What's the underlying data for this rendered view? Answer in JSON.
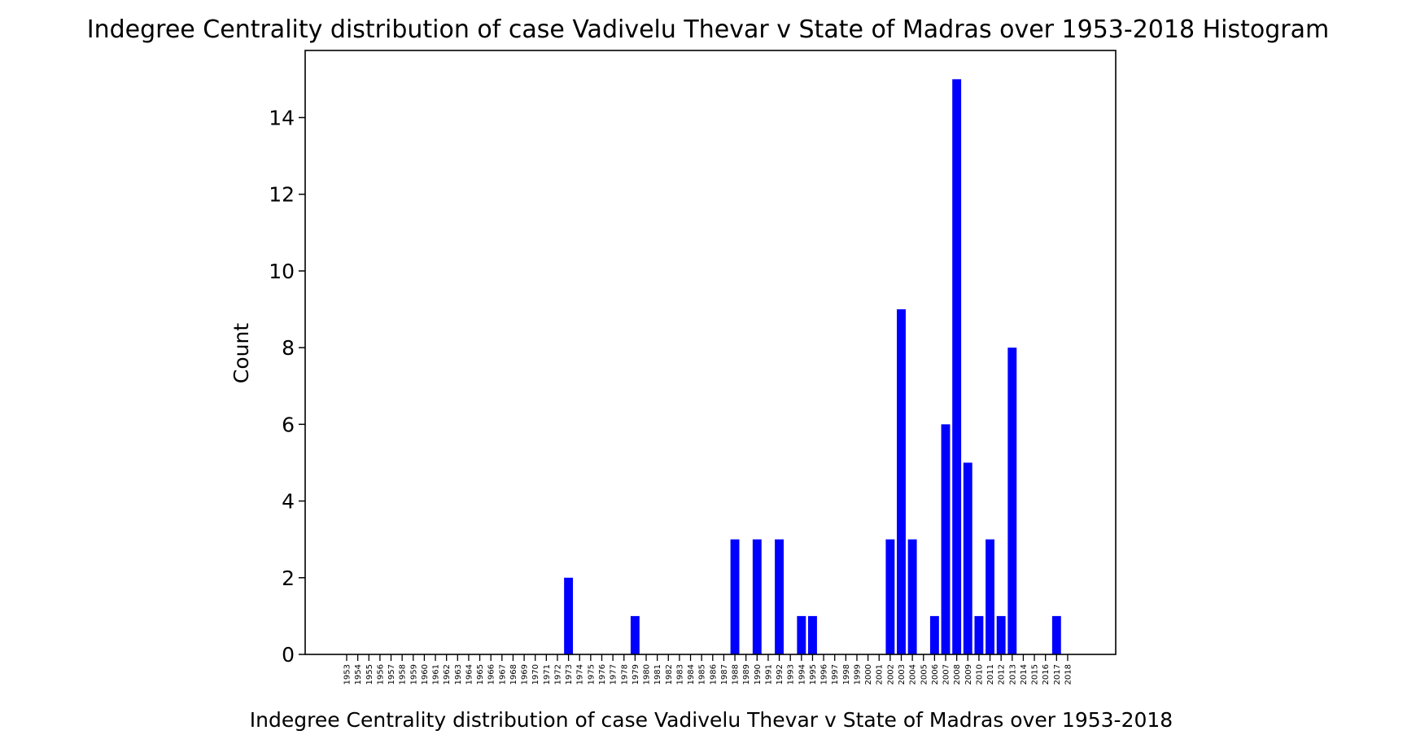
{
  "chart_data": {
    "type": "bar",
    "title": "Indegree Centrality distribution of case Vadivelu Thevar v State of Madras over 1953-2018 Histogram",
    "xlabel": "Indegree Centrality distribution of case Vadivelu Thevar v State of Madras over 1953-2018",
    "ylabel": "Count",
    "ylim": [
      0,
      15.75
    ],
    "yticks": [
      0,
      2,
      4,
      6,
      8,
      10,
      12,
      14
    ],
    "grid": false,
    "legend": "none",
    "bar_color": "#0000ff",
    "categories": [
      "1953",
      "1954",
      "1955",
      "1956",
      "1957",
      "1958",
      "1959",
      "1960",
      "1961",
      "1962",
      "1963",
      "1964",
      "1965",
      "1966",
      "1967",
      "1968",
      "1969",
      "1970",
      "1971",
      "1972",
      "1973",
      "1974",
      "1975",
      "1976",
      "1977",
      "1978",
      "1979",
      "1980",
      "1981",
      "1982",
      "1983",
      "1984",
      "1985",
      "1986",
      "1987",
      "1988",
      "1989",
      "1990",
      "1991",
      "1992",
      "1993",
      "1994",
      "1995",
      "1996",
      "1997",
      "1998",
      "1999",
      "2000",
      "2001",
      "2002",
      "2003",
      "2004",
      "2005",
      "2006",
      "2007",
      "2008",
      "2009",
      "2010",
      "2011",
      "2012",
      "2013",
      "2014",
      "2015",
      "2016",
      "2017",
      "2018"
    ],
    "values": [
      0,
      0,
      0,
      0,
      0,
      0,
      0,
      0,
      0,
      0,
      0,
      0,
      0,
      0,
      0,
      0,
      0,
      0,
      0,
      0,
      2,
      0,
      0,
      0,
      0,
      0,
      1,
      0,
      0,
      0,
      0,
      0,
      0,
      0,
      0,
      3,
      0,
      3,
      0,
      3,
      0,
      1,
      1,
      0,
      0,
      0,
      0,
      0,
      0,
      3,
      9,
      3,
      0,
      1,
      6,
      15,
      5,
      1,
      3,
      1,
      8,
      0,
      0,
      0,
      1,
      0
    ]
  }
}
